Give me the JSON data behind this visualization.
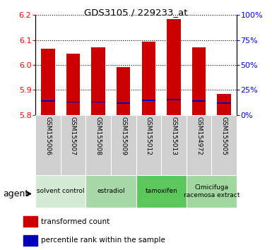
{
  "title": "GDS3105 / 229233_at",
  "samples": [
    "GSM155006",
    "GSM155007",
    "GSM155008",
    "GSM155009",
    "GSM155012",
    "GSM155013",
    "GSM154972",
    "GSM155005"
  ],
  "transformed_counts": [
    6.065,
    6.045,
    6.072,
    5.992,
    6.092,
    6.185,
    6.072,
    5.883
  ],
  "percentile_positions": [
    5.855,
    5.852,
    5.852,
    5.848,
    5.858,
    5.862,
    5.855,
    5.848
  ],
  "percentile_bar_height": 0.005,
  "bar_bottom": 5.8,
  "bar_color": "#cc0000",
  "percentile_color": "#0000bb",
  "ylim_left": [
    5.8,
    6.2
  ],
  "ylim_right": [
    0,
    100
  ],
  "yticks_left": [
    5.8,
    5.9,
    6.0,
    6.1,
    6.2
  ],
  "yticks_right": [
    0,
    25,
    50,
    75,
    100
  ],
  "bar_width": 0.55,
  "groups": [
    {
      "label": "solvent control",
      "start": 0,
      "end": 2,
      "color": "#d4ead4"
    },
    {
      "label": "estradiol",
      "start": 2,
      "end": 4,
      "color": "#a8d8a8"
    },
    {
      "label": "tamoxifen",
      "start": 4,
      "end": 6,
      "color": "#5cc85c"
    },
    {
      "label": "Cimicifuga\nracemosa extract",
      "start": 6,
      "end": 8,
      "color": "#a0d8a0"
    }
  ],
  "tick_area_color": "#d0d0d0",
  "legend_items": [
    {
      "color": "#cc0000",
      "label": "transformed count"
    },
    {
      "color": "#0000bb",
      "label": "percentile rank within the sample"
    }
  ]
}
